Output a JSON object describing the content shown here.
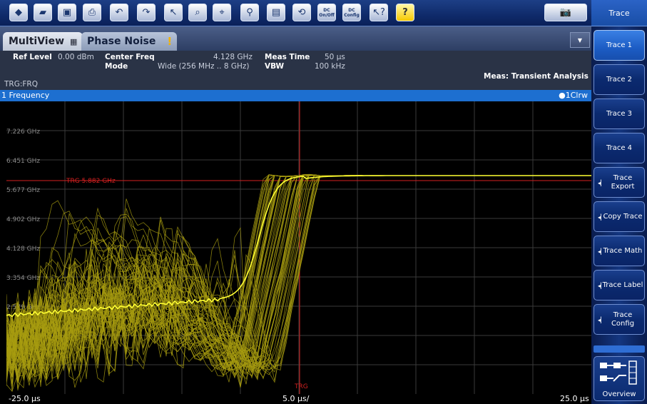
{
  "toolbar": {
    "buttons": [
      "windows-icon",
      "open-icon",
      "save-icon",
      "print-icon",
      "undo-icon",
      "redo-icon",
      "select-icon",
      "zoom-icon",
      "marker-zoom-icon",
      "zoom-1-1-icon",
      "full-screen-icon",
      "sweep-icon"
    ],
    "dc_on_off": "DC On/Off",
    "dc_config": "DC Config",
    "help_label": "?"
  },
  "sidebar": {
    "title": "Trace",
    "buttons": [
      {
        "label": "Trace 1",
        "active": true,
        "arrow": false
      },
      {
        "label": "Trace 2",
        "active": false,
        "arrow": false
      },
      {
        "label": "Trace 3",
        "active": false,
        "arrow": false
      },
      {
        "label": "Trace 4",
        "active": false,
        "arrow": false
      },
      {
        "label": "Trace Export",
        "active": false,
        "arrow": true
      },
      {
        "label": "Copy Trace",
        "active": false,
        "arrow": true
      },
      {
        "label": "Trace Math",
        "active": false,
        "arrow": true
      },
      {
        "label": "Trace Label",
        "active": false,
        "arrow": true
      },
      {
        "label": "Trace Config",
        "active": false,
        "arrow": true
      }
    ],
    "overview_label": "Overview"
  },
  "tabs": {
    "multiview": "MultiView",
    "multiview_icon": "grid-icon",
    "phase_noise": "Phase Noise",
    "warning": "!"
  },
  "info": {
    "ref_level_key": "Ref Level",
    "ref_level_val": "0.00 dBm",
    "center_freq_key": "Center Freq",
    "center_freq_val": "4.128 GHz",
    "mode_key": "Mode",
    "mode_val": "Wide (256 MHz .. 8 GHz)",
    "meas_time_key": "Meas Time",
    "meas_time_val": "50 µs",
    "vbw_key": "VBW",
    "vbw_val": "100 kHz",
    "meas": "Meas: Transient Analysis",
    "trg": "TRG:FRQ"
  },
  "panel": {
    "title": "1 Frequency",
    "trace_badge": "●1Clrw"
  },
  "chart_data": {
    "type": "line",
    "y_ticks": [
      "7.226 GHz",
      "6.451 GHz",
      "5.677 GHz",
      "4.902 GHz",
      "4.128 GHz",
      "3.354 GHz",
      "2.579 GHz"
    ],
    "trigger_label": "TRG 5.882 GHz",
    "trigger_freq": 5.882,
    "trigger_marker": "TRG",
    "x_start": "-25.0 µs",
    "x_div": "5.0 µs/",
    "x_stop": "25.0 µs",
    "colors": {
      "trace": "#ffff33",
      "persistence": "#a89c10",
      "grid": "#3a3a3a",
      "trigger": "#d42020"
    }
  }
}
